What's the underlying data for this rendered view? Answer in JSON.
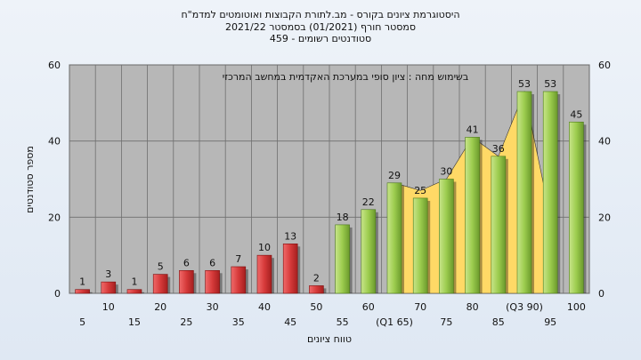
{
  "header": {
    "title_line1": "היסטוגרמת ציונים בקורס - מב.לתורת הקבוצות ואוטומטים למדמ\"ח",
    "title_line2": "2021/22  סמסטר חורף  (01/2021)  בסמסטר",
    "title_line3": "סטודנטים רשומים - 459"
  },
  "colors": {
    "plot_background": "#b7b7b7",
    "bar_fail": "#d63a3a",
    "bar_pass": "#9ccc4e",
    "area": "#ffd966",
    "page_background": "#e6edf6"
  },
  "chart_data": {
    "type": "bar",
    "annotation": "בשימוש מחה : ציון סופי במערכת האקדמית במחשב המרכזי",
    "xlabel": "טווח ציונים",
    "ylabel": "מספר סטודנטים",
    "ylim": [
      0,
      60
    ],
    "yticks": [
      0,
      20,
      40,
      60
    ],
    "grid": true,
    "categories": [
      "5",
      "10",
      "15",
      "20",
      "25",
      "30",
      "35",
      "40",
      "45",
      "50",
      "55",
      "60",
      "(Q1 65)",
      "70",
      "75",
      "80",
      "85",
      "(Q3 90)",
      "95",
      "100"
    ],
    "values": [
      1,
      3,
      1,
      5,
      6,
      6,
      7,
      10,
      13,
      2,
      18,
      22,
      29,
      25,
      30,
      41,
      36,
      53,
      53,
      45
    ],
    "value_labels": [
      "1",
      "3",
      "1",
      "5",
      "6",
      "6",
      "7",
      "10",
      "13",
      "2",
      "18",
      "22",
      "29",
      "25",
      "30",
      "41",
      "36",
      "53",
      "53",
      "45"
    ],
    "pass_threshold": 55,
    "shaded_area": {
      "x": [
        "(Q1 65)",
        "70",
        "75",
        "80",
        "85",
        "(Q3 90)",
        "95"
      ],
      "values": [
        29,
        27,
        30,
        41,
        36,
        53,
        20
      ]
    }
  }
}
